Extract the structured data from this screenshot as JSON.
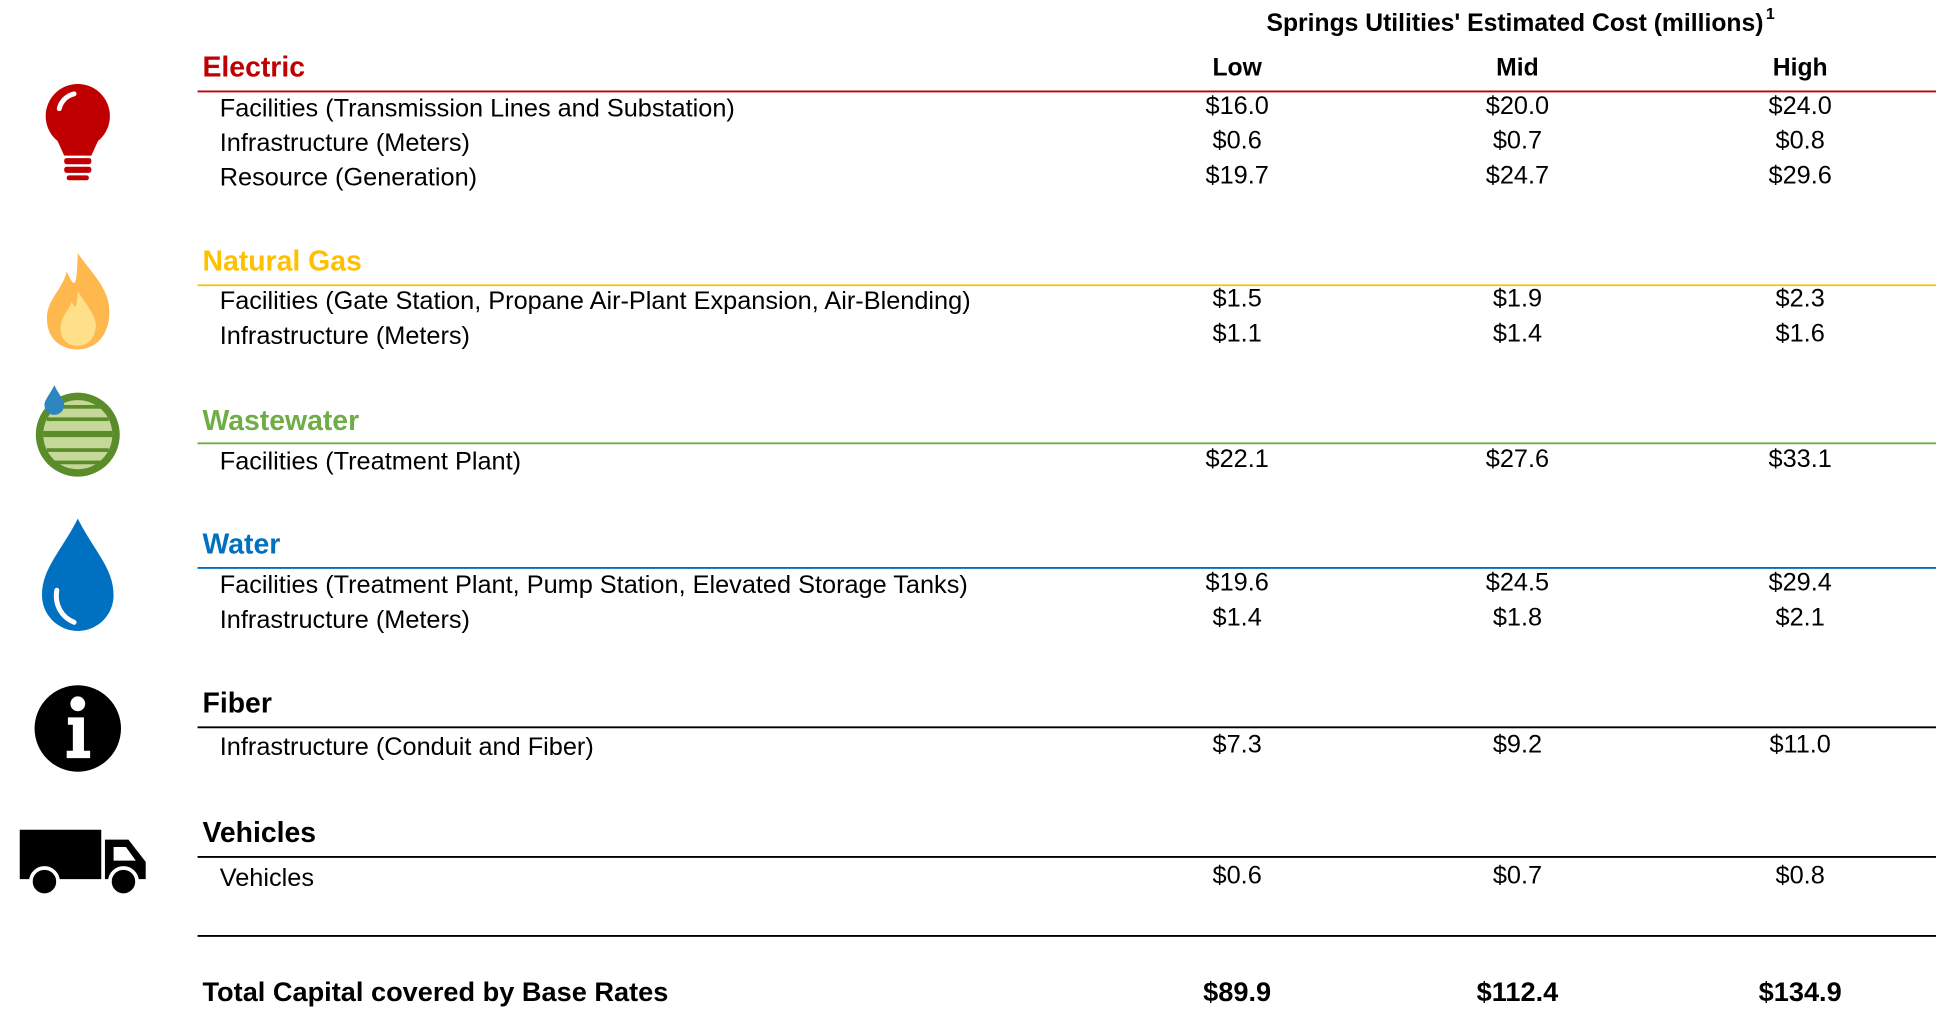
{
  "header": {
    "title": "Springs Utilities' Estimated Cost (millions)",
    "footnote": "1",
    "columns": [
      "Low",
      "Mid",
      "High"
    ]
  },
  "sections": [
    {
      "name": "Electric",
      "color": "#c00000",
      "rows": [
        {
          "label": "Facilities (Transmission Lines and Substation)",
          "values": [
            "$16.0",
            "$20.0",
            "$24.0"
          ]
        },
        {
          "label": "Infrastructure (Meters)",
          "values": [
            "$0.6",
            "$0.7",
            "$0.8"
          ]
        },
        {
          "label": "Resource (Generation)",
          "values": [
            "$19.7",
            "$24.7",
            "$29.6"
          ]
        }
      ]
    },
    {
      "name": "Natural Gas",
      "color": "#ffc000",
      "rows": [
        {
          "label": "Facilities (Gate Station, Propane Air-Plant Expansion, Air-Blending)",
          "values": [
            "$1.5",
            "$1.9",
            "$2.3"
          ]
        },
        {
          "label": "Infrastructure (Meters)",
          "values": [
            "$1.1",
            "$1.4",
            "$1.6"
          ]
        }
      ]
    },
    {
      "name": "Wastewater",
      "color": "#70ad47",
      "rows": [
        {
          "label": "Facilities (Treatment Plant)",
          "values": [
            "$22.1",
            "$27.6",
            "$33.1"
          ]
        }
      ]
    },
    {
      "name": "Water",
      "color": "#0070c0",
      "rows": [
        {
          "label": "Facilities (Treatment Plant, Pump Station, Elevated Storage Tanks)",
          "values": [
            "$19.6",
            "$24.5",
            "$29.4"
          ]
        },
        {
          "label": "Infrastructure (Meters)",
          "values": [
            "$1.4",
            "$1.8",
            "$2.1"
          ]
        }
      ]
    },
    {
      "name": "Fiber",
      "color": "#000000",
      "rows": [
        {
          "label": "Infrastructure (Conduit and Fiber)",
          "values": [
            "$7.3",
            "$9.2",
            "$11.0"
          ]
        }
      ]
    },
    {
      "name": "Vehicles",
      "color": "#000000",
      "rows": [
        {
          "label": "Vehicles",
          "values": [
            "$0.6",
            "$0.7",
            "$0.8"
          ]
        }
      ]
    }
  ],
  "total": {
    "label": "Total Capital covered by Base Rates",
    "values": [
      "$89.9",
      "$112.4",
      "$134.9"
    ]
  }
}
